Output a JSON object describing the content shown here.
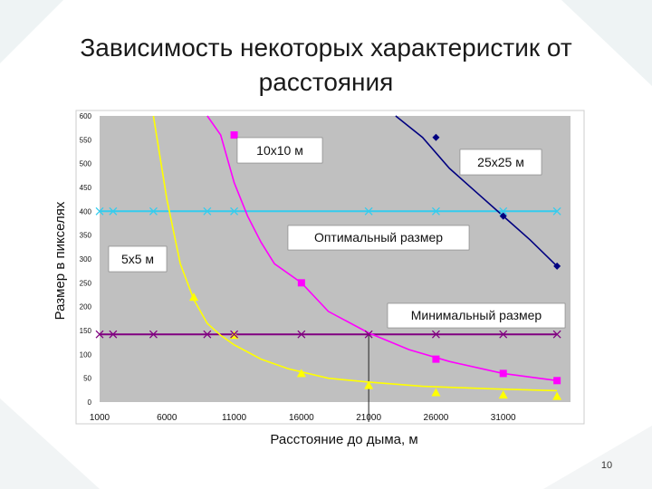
{
  "slide": {
    "title": "Зависимость некоторых характеристик от расстояния",
    "page_number": "10"
  },
  "chart_data": {
    "type": "line",
    "title": "",
    "xlabel": "Расстояние до дыма, м",
    "ylabel": "Размер в пикселях",
    "xlim": [
      1000,
      36000
    ],
    "ylim": [
      0,
      600
    ],
    "x_ticks": [
      1000,
      6000,
      11000,
      16000,
      21000,
      26000,
      31000
    ],
    "x_tick_labels": [
      "1000",
      "6000",
      "11000",
      "16000",
      "21000",
      "26000",
      "31000"
    ],
    "y_ticks": [
      0,
      50,
      100,
      150,
      200,
      250,
      300,
      350,
      400,
      450,
      500,
      550,
      600
    ],
    "y_tick_labels": [
      "0",
      "50",
      "100",
      "150",
      "200",
      "250",
      "300",
      "350",
      "400",
      "450",
      "500",
      "550",
      "600"
    ],
    "grid": false,
    "plot_background": "#c0c0c0",
    "series": [
      {
        "name": "5x5 м",
        "color": "#ffff00",
        "marker": "triangle",
        "curve_x": [
          5000,
          6000,
          7000,
          8000,
          9000,
          10000,
          11000,
          13000,
          15000,
          18000,
          21000,
          25000,
          30000,
          35000
        ],
        "curve_y": [
          600,
          425,
          290,
          215,
          165,
          140,
          120,
          90,
          70,
          50,
          42,
          33,
          28,
          24
        ],
        "x": [
          8000,
          11000,
          16000,
          21000,
          26000,
          31000,
          35000
        ],
        "y": [
          220,
          140,
          60,
          35,
          20,
          15,
          12
        ]
      },
      {
        "name": "10x10 м",
        "color": "#ff00ff",
        "marker": "square",
        "curve_x": [
          9000,
          10000,
          11000,
          12000,
          13000,
          14000,
          16000,
          18000,
          21000,
          24000,
          27000,
          31000,
          35000
        ],
        "curve_y": [
          600,
          560,
          460,
          390,
          335,
          290,
          250,
          190,
          145,
          110,
          85,
          60,
          45
        ],
        "x": [
          11000,
          16000,
          26000,
          31000,
          35000
        ],
        "y": [
          560,
          250,
          90,
          60,
          45
        ]
      },
      {
        "name": "25x25 м",
        "color": "#000080",
        "marker": "diamond",
        "curve_x": [
          23000,
          25000,
          27000,
          29000,
          31000,
          33000,
          35000
        ],
        "curve_y": [
          600,
          555,
          490,
          440,
          390,
          340,
          285
        ],
        "x": [
          26000,
          31000,
          35000
        ],
        "y": [
          555,
          390,
          285
        ]
      },
      {
        "name": "Оптимальный размер",
        "color": "#33ccee",
        "marker": "cross",
        "curve_x": [
          1000,
          35000
        ],
        "curve_y": [
          400,
          400
        ],
        "x": [
          1000,
          2000,
          5000,
          9000,
          11000,
          21000,
          26000,
          31000,
          35000
        ],
        "y": [
          400,
          400,
          400,
          400,
          400,
          400,
          400,
          400,
          400
        ]
      },
      {
        "name": "Минимальный размер",
        "color": "#800080",
        "marker": "cross",
        "curve_x": [
          1000,
          35000
        ],
        "curve_y": [
          142,
          142
        ],
        "x": [
          1000,
          2000,
          5000,
          9000,
          11000,
          16000,
          21000,
          26000,
          31000,
          35000
        ],
        "y": [
          142,
          142,
          142,
          142,
          142,
          142,
          142,
          142,
          142,
          142
        ]
      }
    ],
    "reference_line": {
      "x": 21000,
      "y_from": 0,
      "y_to": 142
    },
    "callouts": [
      "10x10 м",
      "25x25 м",
      "Оптимальный размер",
      "5x5 м",
      "Минимальный размер"
    ]
  }
}
